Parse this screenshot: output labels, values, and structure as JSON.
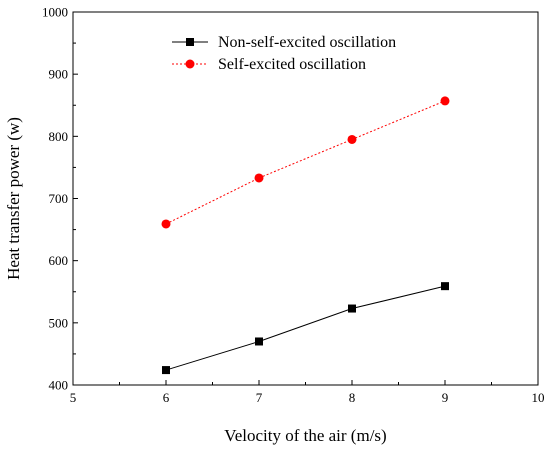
{
  "chart_data": {
    "type": "line",
    "title": "",
    "xlabel": "Velocity of the air (m/s)",
    "ylabel": "Heat transfer power (w)",
    "xlim": [
      5,
      10
    ],
    "ylim": [
      400,
      1000
    ],
    "xticks": [
      5,
      6,
      7,
      8,
      9,
      10
    ],
    "yticks": [
      400,
      500,
      600,
      700,
      800,
      900,
      1000
    ],
    "grid": false,
    "legend_position": "top-center",
    "x": [
      6,
      7,
      8,
      9
    ],
    "series": [
      {
        "name": "Non-self-excited oscillation",
        "values": [
          424,
          470,
          523,
          559
        ],
        "color": "#000000",
        "line_style": "solid",
        "marker": "square"
      },
      {
        "name": "Self-excited oscillation",
        "values": [
          659,
          733,
          795,
          857
        ],
        "color": "#ff0000",
        "line_style": "dotted",
        "marker": "circle"
      }
    ]
  }
}
